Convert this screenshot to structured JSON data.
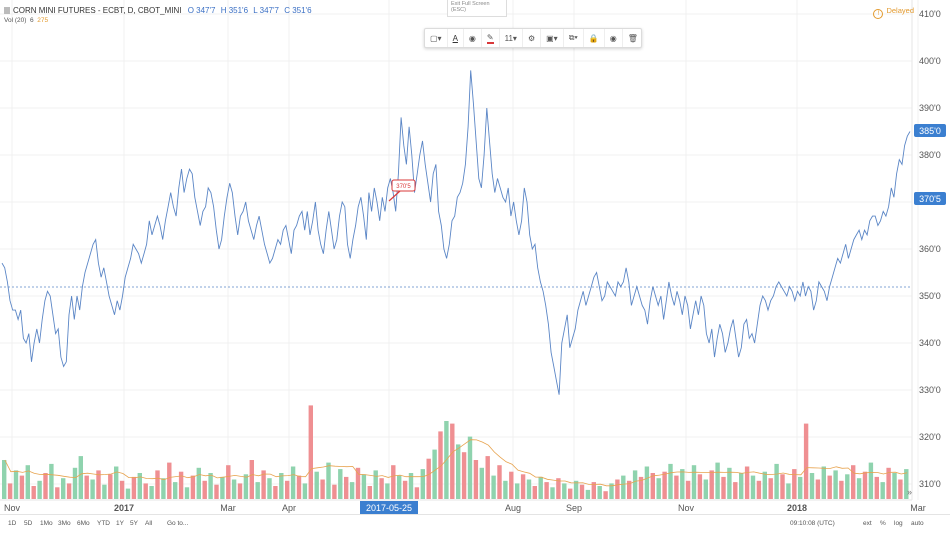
{
  "legend": {
    "symbol": "CORN MINI FUTURES - ECBT, D, CBOT_MINI",
    "open": "O 347'7",
    "high": "H 351'6",
    "low": "L 347'7",
    "close": "C 351'6",
    "volume_label": "Vol (20)",
    "volume_value": "6",
    "volume_ma": "275"
  },
  "delayed_label": "Delayed",
  "exit_full_screen": "Exit Full Screen (ESC)",
  "toolbar": {
    "font_size": "11"
  },
  "chart_data": {
    "type": "line",
    "price_axis_ticks": [
      "410'0",
      "400'0",
      "390'0",
      "380'0",
      "370'0",
      "360'0",
      "350'0",
      "340'0",
      "330'0",
      "320'0",
      "310'0"
    ],
    "time_axis_labels": [
      "Nov",
      "2017",
      "Mar",
      "Apr",
      "2017-05-25",
      "Aug",
      "Sep",
      "Nov",
      "2018",
      "Mar"
    ],
    "highlighted_date": "2017-05-25",
    "current_price_label": "385'0",
    "crosshair_price_label": "370'5",
    "annotation_label": "370'5",
    "colors": {
      "line": "#5b86c6",
      "volume_up": "#8fd3ae",
      "volume_down": "#ef8f92",
      "volume_ma": "#e7a34e",
      "price_badge": "#3b7fd0"
    },
    "price": [
      357,
      356,
      353,
      349,
      347,
      347,
      345,
      347,
      341,
      340,
      342,
      336,
      340,
      343,
      340,
      345,
      349,
      351,
      350,
      346,
      342,
      343,
      337,
      335,
      336,
      346,
      350,
      345,
      350,
      347,
      352,
      355,
      357,
      359,
      361,
      362,
      357,
      354,
      356,
      353,
      350,
      348,
      346,
      349,
      347,
      350,
      354,
      356,
      358,
      361,
      360,
      359,
      357,
      359,
      361,
      366,
      363,
      365,
      367,
      365,
      362,
      366,
      369,
      372,
      369,
      367,
      373,
      377,
      372,
      375,
      377,
      376,
      371,
      368,
      365,
      368,
      369,
      373,
      372,
      369,
      364,
      360,
      362,
      367,
      371,
      374,
      372,
      367,
      363,
      367,
      368,
      370,
      366,
      364,
      362,
      365,
      367,
      364,
      361,
      359,
      357,
      358,
      360,
      362,
      361,
      364,
      365,
      362,
      359,
      364,
      365,
      367,
      368,
      364,
      368,
      363,
      366,
      370,
      364,
      361,
      359,
      364,
      368,
      364,
      360,
      362,
      367,
      370,
      369,
      361,
      358,
      362,
      365,
      369,
      371,
      367,
      362,
      372,
      368,
      373,
      370,
      366,
      371,
      368,
      373,
      375,
      372,
      368,
      376,
      388,
      382,
      378,
      386,
      380,
      372,
      376,
      380,
      383,
      378,
      374,
      370,
      376,
      378,
      368,
      365,
      360,
      358,
      361,
      366,
      367,
      371,
      372,
      374,
      378,
      386,
      398,
      391,
      383,
      375,
      373,
      380,
      390,
      383,
      376,
      372,
      375,
      373,
      371,
      370,
      373,
      367,
      370,
      366,
      363,
      366,
      373,
      370,
      363,
      360,
      361,
      356,
      353,
      351,
      348,
      344,
      338,
      335,
      332,
      329,
      340,
      343,
      346,
      339,
      341,
      343,
      347,
      349,
      351,
      348,
      350,
      352,
      354,
      355,
      352,
      349,
      350,
      353,
      352,
      351,
      350,
      353,
      352,
      353,
      356,
      353,
      348,
      350,
      352,
      350,
      348,
      347,
      344,
      349,
      352,
      350,
      348,
      350,
      345,
      349,
      353,
      350,
      348,
      351,
      349,
      346,
      350,
      348,
      343,
      346,
      349,
      346,
      350,
      348,
      342,
      340,
      343,
      337,
      341,
      344,
      342,
      338,
      340,
      343,
      345,
      341,
      337,
      339,
      344,
      345,
      341,
      342,
      340,
      344,
      348,
      350,
      349,
      347,
      349,
      350,
      352,
      353,
      352,
      351,
      350,
      352,
      351,
      349,
      351,
      350,
      353,
      350,
      352,
      351,
      347,
      349,
      353,
      352,
      351,
      349,
      352,
      354,
      356,
      358,
      357,
      359,
      361,
      358,
      360,
      362,
      363,
      364,
      362,
      364,
      363,
      366,
      367,
      367,
      365,
      366,
      368,
      367,
      369,
      373,
      371,
      376,
      379,
      378,
      382,
      384,
      385
    ],
    "volume": [
      {
        "v": 0.3,
        "u": true
      },
      {
        "v": 0.12,
        "u": false
      },
      {
        "v": 0.22,
        "u": true
      },
      {
        "v": 0.18,
        "u": false
      },
      {
        "v": 0.26,
        "u": true
      },
      {
        "v": 0.1,
        "u": false
      },
      {
        "v": 0.14,
        "u": true
      },
      {
        "v": 0.2,
        "u": false
      },
      {
        "v": 0.27,
        "u": true
      },
      {
        "v": 0.09,
        "u": false
      },
      {
        "v": 0.16,
        "u": true
      },
      {
        "v": 0.12,
        "u": false
      },
      {
        "v": 0.24,
        "u": true
      },
      {
        "v": 0.33,
        "u": true
      },
      {
        "v": 0.18,
        "u": false
      },
      {
        "v": 0.15,
        "u": true
      },
      {
        "v": 0.22,
        "u": false
      },
      {
        "v": 0.11,
        "u": true
      },
      {
        "v": 0.19,
        "u": false
      },
      {
        "v": 0.25,
        "u": true
      },
      {
        "v": 0.14,
        "u": false
      },
      {
        "v": 0.08,
        "u": true
      },
      {
        "v": 0.17,
        "u": false
      },
      {
        "v": 0.2,
        "u": true
      },
      {
        "v": 0.12,
        "u": false
      },
      {
        "v": 0.1,
        "u": true
      },
      {
        "v": 0.22,
        "u": false
      },
      {
        "v": 0.16,
        "u": true
      },
      {
        "v": 0.28,
        "u": false
      },
      {
        "v": 0.13,
        "u": true
      },
      {
        "v": 0.21,
        "u": false
      },
      {
        "v": 0.09,
        "u": true
      },
      {
        "v": 0.18,
        "u": false
      },
      {
        "v": 0.24,
        "u": true
      },
      {
        "v": 0.14,
        "u": false
      },
      {
        "v": 0.2,
        "u": true
      },
      {
        "v": 0.11,
        "u": false
      },
      {
        "v": 0.17,
        "u": true
      },
      {
        "v": 0.26,
        "u": false
      },
      {
        "v": 0.15,
        "u": true
      },
      {
        "v": 0.12,
        "u": false
      },
      {
        "v": 0.19,
        "u": true
      },
      {
        "v": 0.3,
        "u": false
      },
      {
        "v": 0.13,
        "u": true
      },
      {
        "v": 0.22,
        "u": false
      },
      {
        "v": 0.16,
        "u": true
      },
      {
        "v": 0.1,
        "u": false
      },
      {
        "v": 0.2,
        "u": true
      },
      {
        "v": 0.14,
        "u": false
      },
      {
        "v": 0.25,
        "u": true
      },
      {
        "v": 0.18,
        "u": false
      },
      {
        "v": 0.12,
        "u": true
      },
      {
        "v": 0.72,
        "u": false
      },
      {
        "v": 0.21,
        "u": true
      },
      {
        "v": 0.15,
        "u": false
      },
      {
        "v": 0.28,
        "u": true
      },
      {
        "v": 0.11,
        "u": false
      },
      {
        "v": 0.23,
        "u": true
      },
      {
        "v": 0.17,
        "u": false
      },
      {
        "v": 0.13,
        "u": true
      },
      {
        "v": 0.24,
        "u": false
      },
      {
        "v": 0.19,
        "u": true
      },
      {
        "v": 0.1,
        "u": false
      },
      {
        "v": 0.22,
        "u": true
      },
      {
        "v": 0.16,
        "u": false
      },
      {
        "v": 0.12,
        "u": true
      },
      {
        "v": 0.26,
        "u": false
      },
      {
        "v": 0.18,
        "u": true
      },
      {
        "v": 0.14,
        "u": false
      },
      {
        "v": 0.2,
        "u": true
      },
      {
        "v": 0.09,
        "u": false
      },
      {
        "v": 0.23,
        "u": true
      },
      {
        "v": 0.31,
        "u": false
      },
      {
        "v": 0.38,
        "u": true
      },
      {
        "v": 0.52,
        "u": false
      },
      {
        "v": 0.6,
        "u": true
      },
      {
        "v": 0.58,
        "u": false
      },
      {
        "v": 0.42,
        "u": true
      },
      {
        "v": 0.36,
        "u": false
      },
      {
        "v": 0.48,
        "u": true
      },
      {
        "v": 0.3,
        "u": false
      },
      {
        "v": 0.24,
        "u": true
      },
      {
        "v": 0.33,
        "u": false
      },
      {
        "v": 0.18,
        "u": true
      },
      {
        "v": 0.26,
        "u": false
      },
      {
        "v": 0.14,
        "u": true
      },
      {
        "v": 0.21,
        "u": false
      },
      {
        "v": 0.12,
        "u": true
      },
      {
        "v": 0.19,
        "u": false
      },
      {
        "v": 0.15,
        "u": true
      },
      {
        "v": 0.1,
        "u": false
      },
      {
        "v": 0.17,
        "u": true
      },
      {
        "v": 0.13,
        "u": false
      },
      {
        "v": 0.09,
        "u": true
      },
      {
        "v": 0.16,
        "u": false
      },
      {
        "v": 0.12,
        "u": true
      },
      {
        "v": 0.08,
        "u": false
      },
      {
        "v": 0.14,
        "u": true
      },
      {
        "v": 0.11,
        "u": false
      },
      {
        "v": 0.07,
        "u": true
      },
      {
        "v": 0.13,
        "u": false
      },
      {
        "v": 0.1,
        "u": true
      },
      {
        "v": 0.06,
        "u": false
      },
      {
        "v": 0.12,
        "u": true
      },
      {
        "v": 0.15,
        "u": false
      },
      {
        "v": 0.18,
        "u": true
      },
      {
        "v": 0.14,
        "u": false
      },
      {
        "v": 0.22,
        "u": true
      },
      {
        "v": 0.17,
        "u": false
      },
      {
        "v": 0.25,
        "u": true
      },
      {
        "v": 0.2,
        "u": false
      },
      {
        "v": 0.16,
        "u": true
      },
      {
        "v": 0.21,
        "u": false
      },
      {
        "v": 0.27,
        "u": true
      },
      {
        "v": 0.18,
        "u": false
      },
      {
        "v": 0.23,
        "u": true
      },
      {
        "v": 0.14,
        "u": false
      },
      {
        "v": 0.26,
        "u": true
      },
      {
        "v": 0.19,
        "u": false
      },
      {
        "v": 0.15,
        "u": true
      },
      {
        "v": 0.22,
        "u": false
      },
      {
        "v": 0.28,
        "u": true
      },
      {
        "v": 0.17,
        "u": false
      },
      {
        "v": 0.24,
        "u": true
      },
      {
        "v": 0.13,
        "u": false
      },
      {
        "v": 0.2,
        "u": true
      },
      {
        "v": 0.25,
        "u": false
      },
      {
        "v": 0.18,
        "u": true
      },
      {
        "v": 0.14,
        "u": false
      },
      {
        "v": 0.21,
        "u": true
      },
      {
        "v": 0.16,
        "u": false
      },
      {
        "v": 0.27,
        "u": true
      },
      {
        "v": 0.19,
        "u": false
      },
      {
        "v": 0.12,
        "u": true
      },
      {
        "v": 0.23,
        "u": false
      },
      {
        "v": 0.17,
        "u": true
      },
      {
        "v": 0.58,
        "u": false
      },
      {
        "v": 0.2,
        "u": true
      },
      {
        "v": 0.15,
        "u": false
      },
      {
        "v": 0.25,
        "u": true
      },
      {
        "v": 0.18,
        "u": false
      },
      {
        "v": 0.22,
        "u": true
      },
      {
        "v": 0.14,
        "u": false
      },
      {
        "v": 0.19,
        "u": true
      },
      {
        "v": 0.26,
        "u": false
      },
      {
        "v": 0.16,
        "u": true
      },
      {
        "v": 0.21,
        "u": false
      },
      {
        "v": 0.28,
        "u": true
      },
      {
        "v": 0.17,
        "u": false
      },
      {
        "v": 0.13,
        "u": true
      },
      {
        "v": 0.24,
        "u": false
      },
      {
        "v": 0.2,
        "u": true
      },
      {
        "v": 0.15,
        "u": false
      },
      {
        "v": 0.23,
        "u": true
      }
    ]
  },
  "bottom_bar": {
    "ranges": [
      "1D",
      "5D",
      "1Mo",
      "3Mo",
      "6Mo",
      "YTD",
      "1Y",
      "5Y",
      "All"
    ],
    "goto": "Go to...",
    "time": "09:10:08 (UTC)",
    "ext": "ext",
    "percent": "%",
    "log": "log",
    "auto": "auto"
  }
}
